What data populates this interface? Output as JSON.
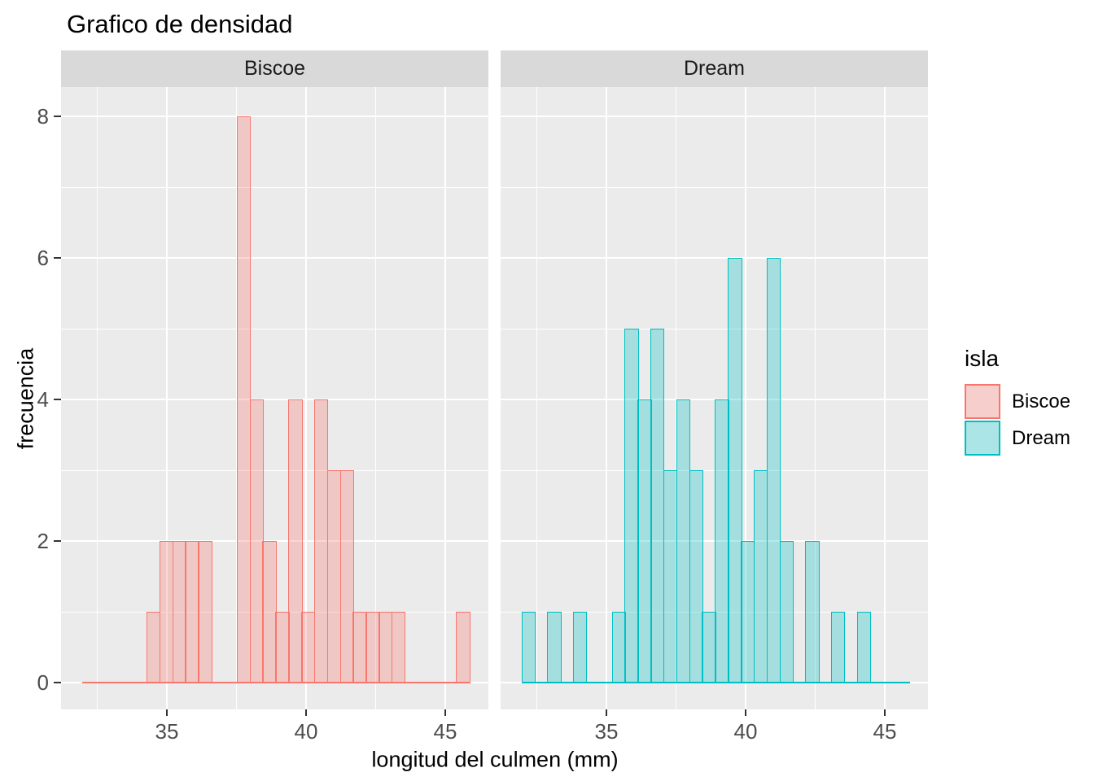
{
  "title": "Grafico de densidad",
  "legend": {
    "title": "isla",
    "entries": [
      {
        "label": "Biscoe",
        "stroke": "#F8766D",
        "fill": "rgba(248,118,109,0.3)"
      },
      {
        "label": "Dream",
        "stroke": "#00BFC4",
        "fill": "rgba(0,191,196,0.3)"
      }
    ]
  },
  "colors": {
    "panel_background": "#EBEBEB",
    "strip_background": "#D9D9D9",
    "gridline": "#FFFFFF",
    "tick_mark": "#333333",
    "axis_text": "#4D4D4D",
    "biscoe_accent": "#F8766D",
    "dream_accent": "#00BFC4"
  },
  "chart_data": {
    "type": "histogram",
    "title": "Grafico de densidad",
    "xlabel": "longitud del culmen (mm)",
    "ylabel": "frecuencia",
    "legend_title": "isla",
    "legend_position": "right",
    "grid": true,
    "x_domain": [
      31.2,
      46.55
    ],
    "y_domain": [
      -0.38,
      8.41
    ],
    "x_ticks_major": [
      35,
      40,
      45
    ],
    "x_ticks_minor": [
      32.5,
      37.5,
      42.5
    ],
    "x_tick_labels": [
      "35",
      "40",
      "45"
    ],
    "y_ticks_major": [
      0,
      2,
      4,
      6,
      8
    ],
    "y_ticks_minor": [
      1,
      3,
      5,
      7
    ],
    "y_tick_labels": [
      "0",
      "2",
      "4",
      "6",
      "8"
    ],
    "bin_start_mm": 31.95,
    "binwidth_mm": 0.4633,
    "n_bins": 30,
    "facets": [
      {
        "label": "Biscoe",
        "stroke": "#F8766D",
        "fill": "rgba(248,118,109,0.3)",
        "total_count": 44,
        "counts": [
          0,
          0,
          0,
          0,
          0,
          1,
          2,
          2,
          2,
          2,
          0,
          0,
          8,
          4,
          2,
          1,
          4,
          1,
          4,
          3,
          3,
          1,
          1,
          1,
          1,
          0,
          0,
          0,
          0,
          1
        ]
      },
      {
        "label": "Dream",
        "stroke": "#00BFC4",
        "fill": "rgba(0,191,196,0.3)",
        "total_count": 56,
        "counts": [
          1,
          0,
          1,
          0,
          1,
          0,
          0,
          1,
          5,
          4,
          5,
          3,
          4,
          3,
          1,
          4,
          6,
          2,
          3,
          6,
          2,
          0,
          2,
          0,
          1,
          0,
          1,
          0,
          0,
          0
        ]
      }
    ]
  }
}
